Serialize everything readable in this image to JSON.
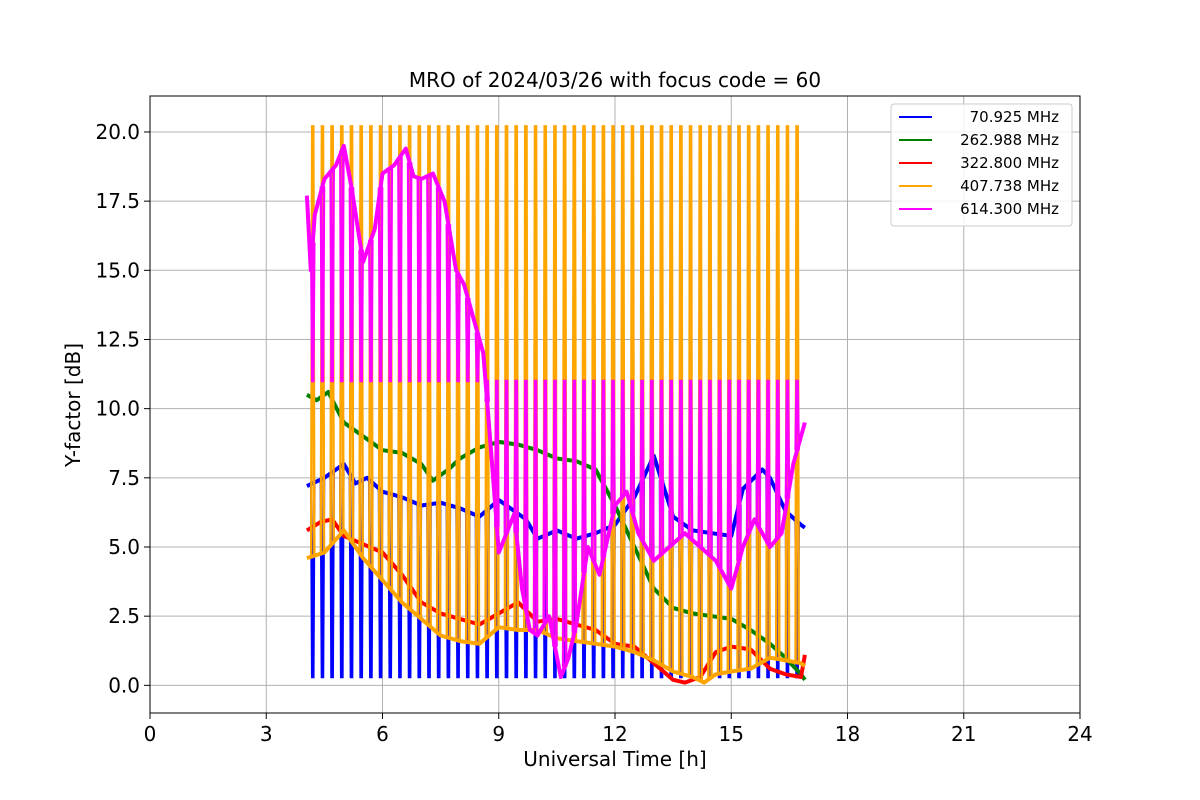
{
  "chart_data": {
    "type": "line",
    "title": "MRO of 2024/03/26 with focus code = 60",
    "xlabel": "Universal Time [h]",
    "ylabel": "Y-factor [dB]",
    "xlim": [
      0,
      24
    ],
    "ylim": [
      -1.0,
      21.3
    ],
    "x_ticks": [
      0,
      3,
      6,
      9,
      12,
      15,
      18,
      21,
      24
    ],
    "x_tick_labels": [
      "0",
      "3",
      "6",
      "9",
      "12",
      "15",
      "18",
      "21",
      "24"
    ],
    "y_ticks": [
      0,
      2.5,
      5,
      7.5,
      10,
      12.5,
      15,
      17.5,
      20
    ],
    "y_tick_labels": [
      "0.0",
      "2.5",
      "5.0",
      "7.5",
      "10.0",
      "12.5",
      "15.0",
      "17.5",
      "20.0"
    ],
    "grid": true,
    "legend_position": "top-right",
    "calibration_spikes": {
      "start_hour": 4.2,
      "end_hour": 16.75,
      "interval_hours": 0.25,
      "peak_by_series": {
        "407.738 MHz": 20.2,
        "614.300 MHz": 11.0
      },
      "dip_by_series": {
        "70.925 MHz": 0.3
      }
    },
    "series": [
      {
        "name": "70.925 MHz",
        "color": "#0000ff",
        "x": [
          4.05,
          4.5,
          5.0,
          5.3,
          5.6,
          6.0,
          6.5,
          7.0,
          7.5,
          8.0,
          8.5,
          9.0,
          9.3,
          9.7,
          10.0,
          10.5,
          11.0,
          11.5,
          12.0,
          12.5,
          13.0,
          13.5,
          14.0,
          14.5,
          15.0,
          15.3,
          15.8,
          16.0,
          16.4,
          16.8,
          16.9
        ],
        "y": [
          7.2,
          7.5,
          8.0,
          7.3,
          7.5,
          7.0,
          6.8,
          6.5,
          6.6,
          6.4,
          6.1,
          6.7,
          6.4,
          6.0,
          5.3,
          5.6,
          5.3,
          5.5,
          5.8,
          6.8,
          8.3,
          6.1,
          5.6,
          5.5,
          5.4,
          7.1,
          7.8,
          7.5,
          6.3,
          5.8,
          5.7
        ]
      },
      {
        "name": "262.988 MHz",
        "color": "#008000",
        "x": [
          4.05,
          4.3,
          4.6,
          5.0,
          5.5,
          6.0,
          6.5,
          7.0,
          7.3,
          7.7,
          8.0,
          8.5,
          9.0,
          9.5,
          10.0,
          10.5,
          11.0,
          11.5,
          12.0,
          12.5,
          13.0,
          13.5,
          14.0,
          14.5,
          15.0,
          15.5,
          16.0,
          16.4,
          16.8,
          16.9
        ],
        "y": [
          10.5,
          10.3,
          10.6,
          9.5,
          9.0,
          8.5,
          8.4,
          8.0,
          7.4,
          7.8,
          8.2,
          8.6,
          8.8,
          8.7,
          8.5,
          8.2,
          8.1,
          7.8,
          6.5,
          5.0,
          3.5,
          2.8,
          2.6,
          2.5,
          2.4,
          2.0,
          1.5,
          1.0,
          0.4,
          0.2
        ]
      },
      {
        "name": "322.800 MHz",
        "color": "#ff0000",
        "x": [
          4.05,
          4.4,
          4.7,
          5.0,
          5.5,
          6.0,
          6.5,
          7.0,
          7.5,
          8.0,
          8.5,
          9.0,
          9.5,
          10.0,
          10.5,
          11.0,
          11.5,
          12.0,
          12.5,
          13.0,
          13.5,
          13.8,
          14.2,
          14.6,
          15.0,
          15.5,
          16.0,
          16.4,
          16.8,
          16.9
        ],
        "y": [
          5.6,
          5.9,
          6.0,
          5.4,
          5.1,
          4.8,
          4.0,
          3.0,
          2.6,
          2.4,
          2.2,
          2.6,
          3.0,
          2.3,
          2.4,
          2.2,
          2.0,
          1.5,
          1.4,
          0.8,
          0.2,
          0.1,
          0.3,
          1.2,
          1.4,
          1.3,
          0.6,
          0.4,
          0.3,
          1.1
        ]
      },
      {
        "name": "407.738 MHz",
        "color": "#ffa500",
        "x": [
          4.05,
          4.5,
          5.0,
          5.5,
          6.0,
          6.5,
          7.0,
          7.5,
          8.0,
          8.5,
          9.0,
          9.5,
          10.0,
          10.5,
          11.0,
          11.5,
          12.0,
          12.5,
          13.0,
          13.5,
          14.0,
          14.3,
          14.6,
          15.0,
          15.5,
          16.0,
          16.4,
          16.8,
          16.9
        ],
        "y": [
          4.6,
          4.8,
          5.6,
          4.6,
          3.8,
          3.0,
          2.4,
          1.8,
          1.6,
          1.5,
          2.1,
          2.0,
          2.0,
          1.7,
          1.6,
          1.5,
          1.4,
          1.2,
          0.9,
          0.5,
          0.3,
          0.1,
          0.4,
          0.5,
          0.6,
          1.0,
          0.9,
          0.8,
          0.7
        ]
      },
      {
        "name": "614.300 MHz",
        "color": "#ff00ff",
        "x": [
          4.05,
          4.15,
          4.25,
          4.5,
          4.8,
          5.0,
          5.2,
          5.5,
          5.8,
          6.0,
          6.3,
          6.6,
          6.8,
          7.0,
          7.3,
          7.6,
          7.9,
          8.1,
          8.4,
          8.6,
          8.8,
          9.0,
          9.2,
          9.4,
          9.6,
          9.8,
          10.0,
          10.3,
          10.6,
          10.8,
          11.0,
          11.3,
          11.6,
          12.0,
          12.3,
          12.6,
          13.0,
          13.4,
          13.8,
          14.2,
          14.6,
          15.0,
          15.3,
          15.6,
          16.0,
          16.3,
          16.6,
          16.9
        ],
        "y": [
          17.7,
          15.0,
          17.0,
          18.3,
          18.8,
          19.5,
          18.0,
          15.3,
          16.5,
          18.5,
          18.8,
          19.4,
          18.4,
          18.3,
          18.5,
          17.5,
          15.0,
          14.5,
          13.0,
          12.0,
          8.5,
          4.8,
          5.5,
          6.2,
          3.5,
          2.0,
          1.8,
          2.5,
          0.3,
          1.0,
          2.2,
          5.0,
          4.0,
          6.5,
          7.0,
          5.5,
          4.5,
          5.0,
          5.5,
          5.0,
          4.5,
          3.5,
          5.0,
          6.0,
          5.0,
          5.5,
          8.0,
          9.5
        ]
      }
    ]
  }
}
